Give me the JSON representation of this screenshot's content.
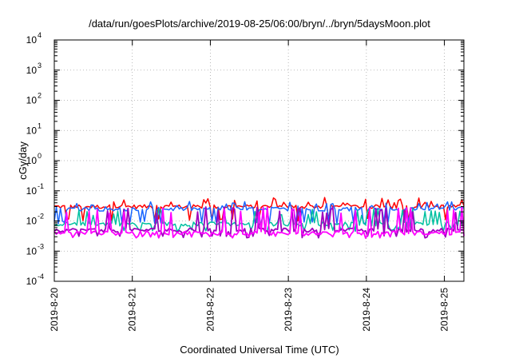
{
  "chart_data": {
    "type": "line",
    "title": "/data/run/goesPlots/archive/2019-08-25/06:00/bryn/../bryn/5daysMoon.plot",
    "xlabel": "Coordinated Universal Time (UTC)",
    "ylabel": "cGy/day",
    "y_scale": "log",
    "ylim": [
      0.0001,
      10000
    ],
    "xlim": [
      "2019-08-20T00:00",
      "2019-08-25T06:00"
    ],
    "x_ticks": [
      "2019-8-20",
      "2019-8-21",
      "2019-8-22",
      "2019-8-23",
      "2019-8-24",
      "2019-8-25"
    ],
    "y_ticks": [
      {
        "base": "10",
        "exp": "-4"
      },
      {
        "base": "10",
        "exp": "-3"
      },
      {
        "base": "10",
        "exp": "-2"
      },
      {
        "base": "10",
        "exp": "-1"
      },
      {
        "base": "10",
        "exp": "0"
      },
      {
        "base": "10",
        "exp": "1"
      },
      {
        "base": "10",
        "exp": "2"
      },
      {
        "base": "10",
        "exp": "3"
      },
      {
        "base": "10",
        "exp": "4"
      }
    ],
    "grid": true,
    "legend": "none",
    "series": [
      {
        "color": "#ff0000",
        "level": 0.03,
        "low": 0.011,
        "high": 0.06
      },
      {
        "color": "#1a66ff",
        "level": 0.025,
        "low": 0.009,
        "high": 0.045
      },
      {
        "color": "#00c0a0",
        "level": 0.008,
        "low": 0.005,
        "high": 0.025
      },
      {
        "color": "#a000c0",
        "level": 0.005,
        "low": 0.003,
        "high": 0.03
      },
      {
        "color": "#ff00ff",
        "level": 0.004,
        "low": 0.003,
        "high": 0.03
      }
    ]
  }
}
